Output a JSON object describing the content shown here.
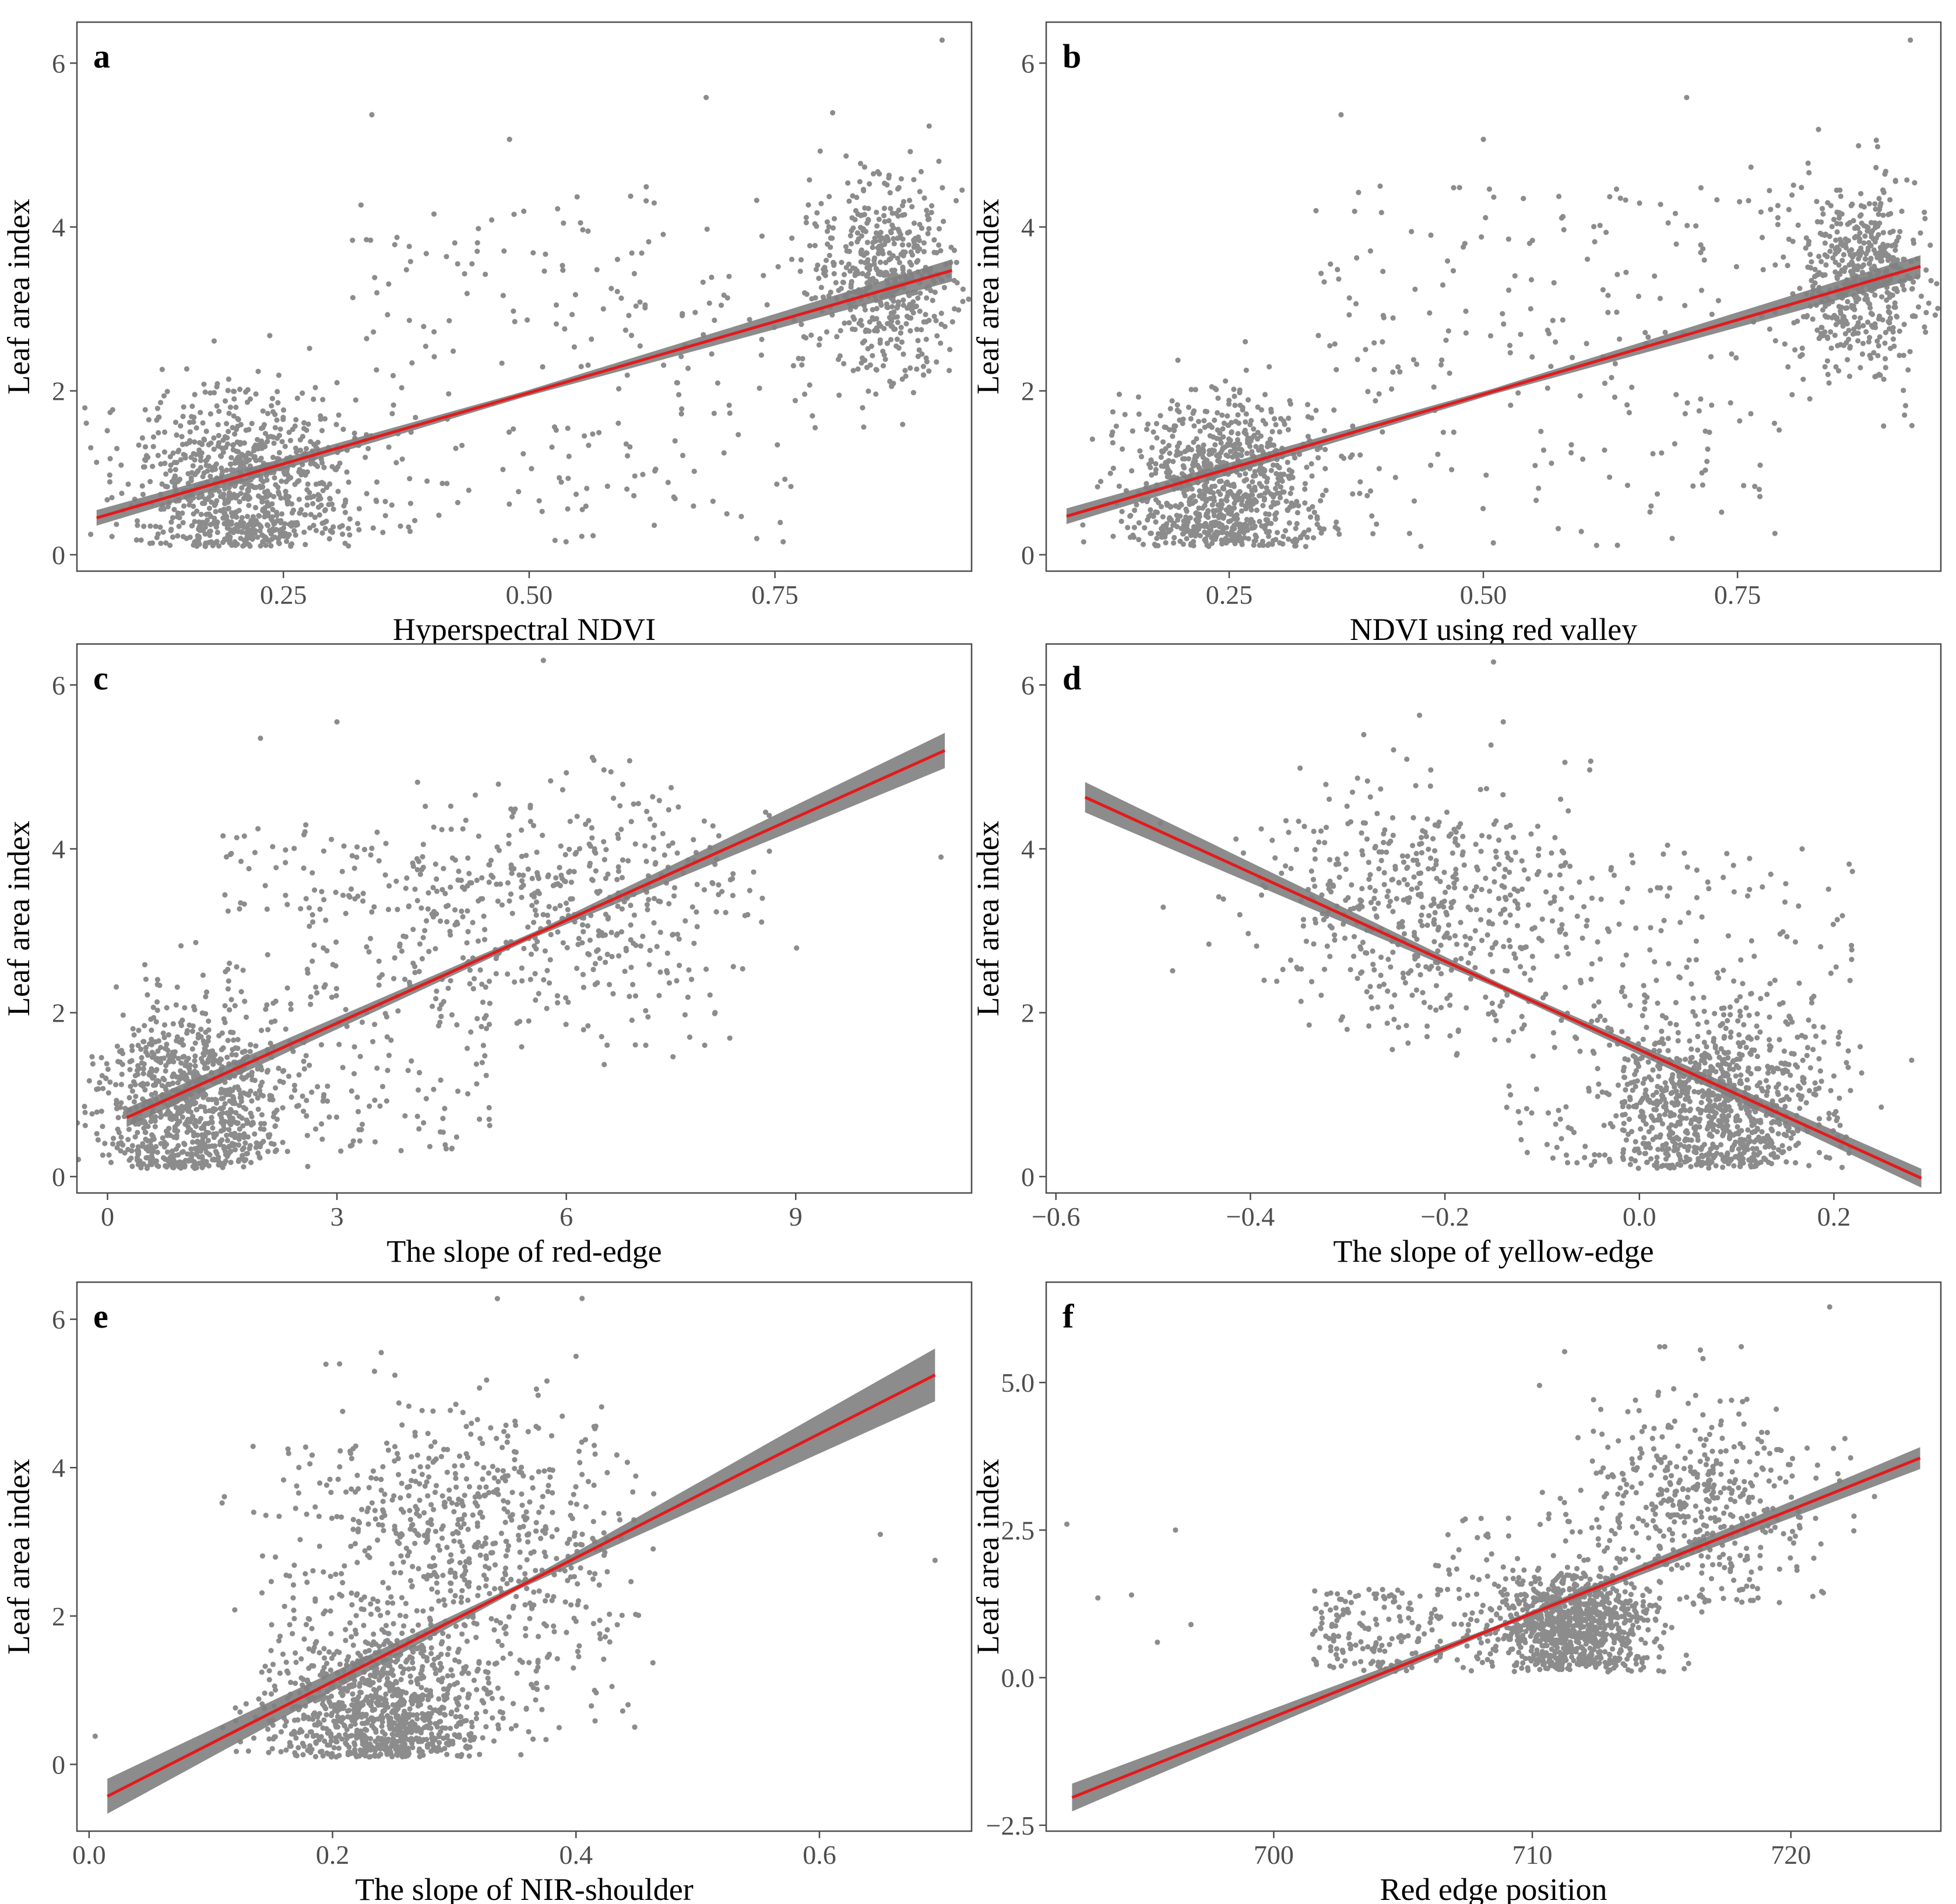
{
  "figure": {
    "colors": {
      "points": "#8c8c8c",
      "fit_line": "#e31a1c",
      "confidence_band": "#7f7f7f",
      "panel_border": "#4d4d4d",
      "tick_text": "#4d4d4d"
    }
  },
  "chart_data": [
    {
      "panel": "a",
      "type": "scatter",
      "title": "",
      "xlabel": "Hyperspectral NDVI",
      "ylabel": "Leaf area index",
      "xlim": [
        0.04,
        0.95
      ],
      "ylim": [
        -0.2,
        6.5
      ],
      "xticks": [
        0.25,
        0.5,
        0.75
      ],
      "xtick_labels": [
        "0.25",
        "0.50",
        "0.75"
      ],
      "yticks": [
        0,
        2,
        4,
        6
      ],
      "ytick_labels": [
        "0",
        "2",
        "4",
        "6"
      ],
      "fit": {
        "x0": 0.06,
        "y0": 0.45,
        "x1": 0.93,
        "y1": 3.47,
        "se_start": 0.06,
        "se_end": 0.1
      },
      "clusters": [
        {
          "n": 900,
          "cx": 0.21,
          "cy": 0.8,
          "sx": 0.055,
          "sy": 0.6,
          "ymin": 0.1
        },
        {
          "n": 550,
          "cx": 0.86,
          "cy": 3.35,
          "sx": 0.035,
          "sy": 0.6,
          "ymin": 1.5
        },
        {
          "n": 240,
          "x": [
            0.32,
            0.8
          ],
          "y": [
            0.1,
            4.5
          ]
        }
      ],
      "outliers": [
        [
          0.92,
          6.28
        ],
        [
          0.34,
          5.37
        ],
        [
          0.68,
          5.58
        ],
        [
          0.48,
          5.07
        ]
      ]
    },
    {
      "panel": "b",
      "type": "scatter",
      "title": "",
      "xlabel": "NDVI using red valley",
      "ylabel": "Leaf area index",
      "xlim": [
        0.07,
        0.95
      ],
      "ylim": [
        -0.2,
        6.5
      ],
      "xticks": [
        0.25,
        0.5,
        0.75
      ],
      "xtick_labels": [
        "0.25",
        "0.50",
        "0.75"
      ],
      "yticks": [
        0,
        2,
        4,
        6
      ],
      "ytick_labels": [
        "0",
        "2",
        "4",
        "6"
      ],
      "fit": {
        "x0": 0.09,
        "y0": 0.47,
        "x1": 0.93,
        "y1": 3.52,
        "se_start": 0.06,
        "se_end": 0.1
      },
      "clusters": [
        {
          "n": 900,
          "cx": 0.24,
          "cy": 0.8,
          "sx": 0.045,
          "sy": 0.6,
          "ymin": 0.1
        },
        {
          "n": 550,
          "cx": 0.87,
          "cy": 3.35,
          "sx": 0.033,
          "sy": 0.6,
          "ymin": 1.5
        },
        {
          "n": 240,
          "x": [
            0.33,
            0.8
          ],
          "y": [
            0.1,
            4.5
          ]
        }
      ],
      "outliers": [
        [
          0.92,
          6.28
        ],
        [
          0.36,
          5.37
        ],
        [
          0.7,
          5.58
        ],
        [
          0.5,
          5.07
        ]
      ]
    },
    {
      "panel": "c",
      "type": "scatter",
      "title": "",
      "xlabel": "The slope of red-edge",
      "ylabel": "Leaf area index",
      "xlim": [
        -0.4,
        11.3
      ],
      "ylim": [
        -0.2,
        6.5
      ],
      "xticks": [
        0,
        3,
        6,
        9
      ],
      "xtick_labels": [
        "0",
        "3",
        "6",
        "9"
      ],
      "yticks": [
        0,
        2,
        4,
        6
      ],
      "ytick_labels": [
        "0",
        "2",
        "4",
        "6"
      ],
      "fit": {
        "x0": 0.25,
        "y0": 0.72,
        "x1": 10.95,
        "y1": 5.2,
        "se_start": 0.08,
        "se_end": 0.18
      },
      "clusters": [
        {
          "n": 900,
          "cx": 1.1,
          "cy": 0.9,
          "sx": 0.6,
          "sy": 0.6,
          "ymin": 0.1
        },
        {
          "n": 450,
          "cx": 6.2,
          "cy": 3.3,
          "sx": 1.2,
          "sy": 0.75,
          "ymin": 1.2
        },
        {
          "n": 300,
          "x": [
            1.5,
            5.0
          ],
          "y": [
            0.3,
            4.3
          ]
        }
      ],
      "outliers": [
        [
          5.7,
          6.3
        ],
        [
          3.0,
          5.55
        ],
        [
          2.0,
          5.35
        ],
        [
          10.9,
          3.9
        ]
      ]
    },
    {
      "panel": "d",
      "type": "scatter",
      "title": "",
      "xlabel": "The slope of yellow-edge",
      "ylabel": "Leaf area index",
      "xlim": [
        -0.61,
        0.31
      ],
      "ylim": [
        -0.2,
        6.5
      ],
      "xticks": [
        -0.6,
        -0.4,
        -0.2,
        0.0,
        0.2
      ],
      "xtick_labels": [
        "−0.6",
        "−0.4",
        "−0.2",
        "0.0",
        "0.2"
      ],
      "yticks": [
        0,
        2,
        4,
        6
      ],
      "ytick_labels": [
        "0",
        "2",
        "4",
        "6"
      ],
      "fit": {
        "x0": -0.57,
        "y0": 4.63,
        "x1": 0.29,
        "y1": -0.02,
        "se_start": 0.15,
        "se_end": 0.08
      },
      "clusters": [
        {
          "n": 850,
          "cx": 0.08,
          "cy": 0.85,
          "sx": 0.055,
          "sy": 0.55,
          "ymin": 0.1
        },
        {
          "n": 500,
          "cx": -0.23,
          "cy": 3.3,
          "sx": 0.08,
          "sy": 0.75,
          "ymin": 1.2
        },
        {
          "n": 280,
          "x": [
            -0.15,
            0.22
          ],
          "y": [
            0.2,
            4.0
          ]
        }
      ],
      "outliers": [
        [
          -0.15,
          6.28
        ],
        [
          -0.14,
          5.55
        ],
        [
          -0.05,
          5.07
        ],
        [
          0.28,
          1.42
        ]
      ]
    },
    {
      "panel": "e",
      "type": "scatter",
      "title": "",
      "xlabel": "The slope of NIR-shoulder",
      "ylabel": "Leaf area index",
      "xlim": [
        -0.01,
        0.725
      ],
      "ylim": [
        -0.9,
        6.5
      ],
      "xticks": [
        0.0,
        0.2,
        0.4,
        0.6
      ],
      "xtick_labels": [
        "0.0",
        "0.2",
        "0.4",
        "0.6"
      ],
      "yticks": [
        0,
        2,
        4,
        6
      ],
      "ytick_labels": [
        "0",
        "2",
        "4",
        "6"
      ],
      "fit": {
        "x0": 0.015,
        "y0": -0.43,
        "x1": 0.695,
        "y1": 5.25,
        "se_start": 0.2,
        "se_end": 0.32
      },
      "clusters": [
        {
          "n": 900,
          "cx": 0.24,
          "cy": 0.75,
          "sx": 0.045,
          "sy": 0.5,
          "ymin": 0.1
        },
        {
          "n": 500,
          "cx": 0.31,
          "cy": 3.1,
          "sx": 0.06,
          "sy": 0.85,
          "ymin": 1.2
        },
        {
          "n": 280,
          "x": [
            0.13,
            0.45
          ],
          "y": [
            0.2,
            4.3
          ]
        }
      ],
      "outliers": [
        [
          0.405,
          6.28
        ],
        [
          0.24,
          5.55
        ],
        [
          0.4,
          5.5
        ],
        [
          0.695,
          2.75
        ],
        [
          0.005,
          0.38
        ],
        [
          0.65,
          3.1
        ]
      ]
    },
    {
      "panel": "f",
      "type": "scatter",
      "title": "",
      "xlabel": "Red edge position",
      "ylabel": "Leaf area index",
      "xlim": [
        691.2,
        725.8
      ],
      "ylim": [
        -2.6,
        6.7
      ],
      "xticks": [
        700,
        710,
        720
      ],
      "xtick_labels": [
        "700",
        "710",
        "720"
      ],
      "yticks": [
        -2.5,
        0.0,
        2.5,
        5.0
      ],
      "ytick_labels": [
        "−2.5",
        "0.0",
        "2.5",
        "5.0"
      ],
      "fit": {
        "x0": 692.2,
        "y0": -2.03,
        "x1": 725.0,
        "y1": 3.72,
        "se_start": 0.2,
        "se_end": 0.15
      },
      "clusters": [
        {
          "n": 900,
          "cx": 711.5,
          "cy": 0.85,
          "sx": 1.5,
          "sy": 0.45,
          "ymin": 0.1
        },
        {
          "n": 450,
          "cx": 716.5,
          "cy": 3.0,
          "sx": 2.3,
          "sy": 0.9,
          "ymin": 1.2
        },
        {
          "n": 160,
          "x": [
            701.5,
            706.5
          ],
          "y": [
            0.1,
            1.5
          ]
        },
        {
          "n": 120,
          "x": [
            706.0,
            715.0
          ],
          "y": [
            0.2,
            2.8
          ]
        }
      ],
      "outliers": [
        [
          721.5,
          6.28
        ],
        [
          716.5,
          5.55
        ],
        [
          692.0,
          2.6
        ],
        [
          693.2,
          1.35
        ],
        [
          694.5,
          1.4
        ],
        [
          695.5,
          0.6
        ],
        [
          696.2,
          2.5
        ],
        [
          696.8,
          0.9
        ]
      ]
    }
  ]
}
